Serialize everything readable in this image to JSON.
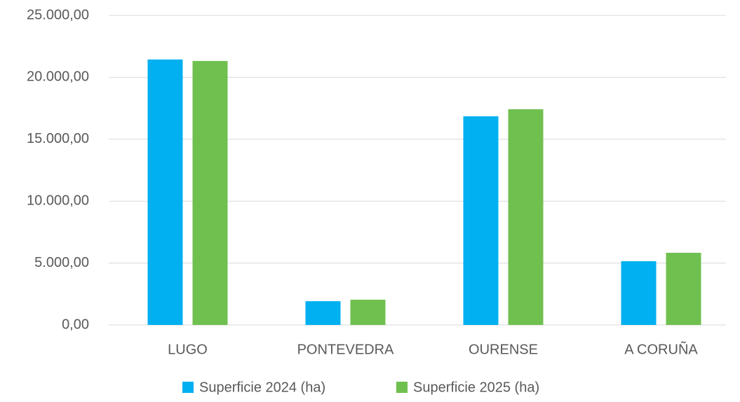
{
  "chart_data": {
    "type": "bar",
    "categories": [
      "LUGO",
      "PONTEVEDRA",
      "OURENSE",
      "A CORUÑA"
    ],
    "series": [
      {
        "name": "Superficie 2024 (ha)",
        "color": "#00b0f0",
        "values": [
          21440,
          1920,
          16850,
          5150
        ]
      },
      {
        "name": "Superficie 2025 (ha)",
        "color": "#70c050",
        "values": [
          21320,
          2040,
          17420,
          5830
        ]
      }
    ],
    "ylim": [
      0,
      25000
    ],
    "yticks": [
      {
        "value": 0,
        "label": "0,00"
      },
      {
        "value": 5000,
        "label": "5.000,00"
      },
      {
        "value": 10000,
        "label": "10.000,00"
      },
      {
        "value": 15000,
        "label": "15.000,00"
      },
      {
        "value": 20000,
        "label": "20.000,00"
      },
      {
        "value": 25000,
        "label": "25.000,00"
      }
    ],
    "grid": true,
    "legend": "bottom"
  }
}
